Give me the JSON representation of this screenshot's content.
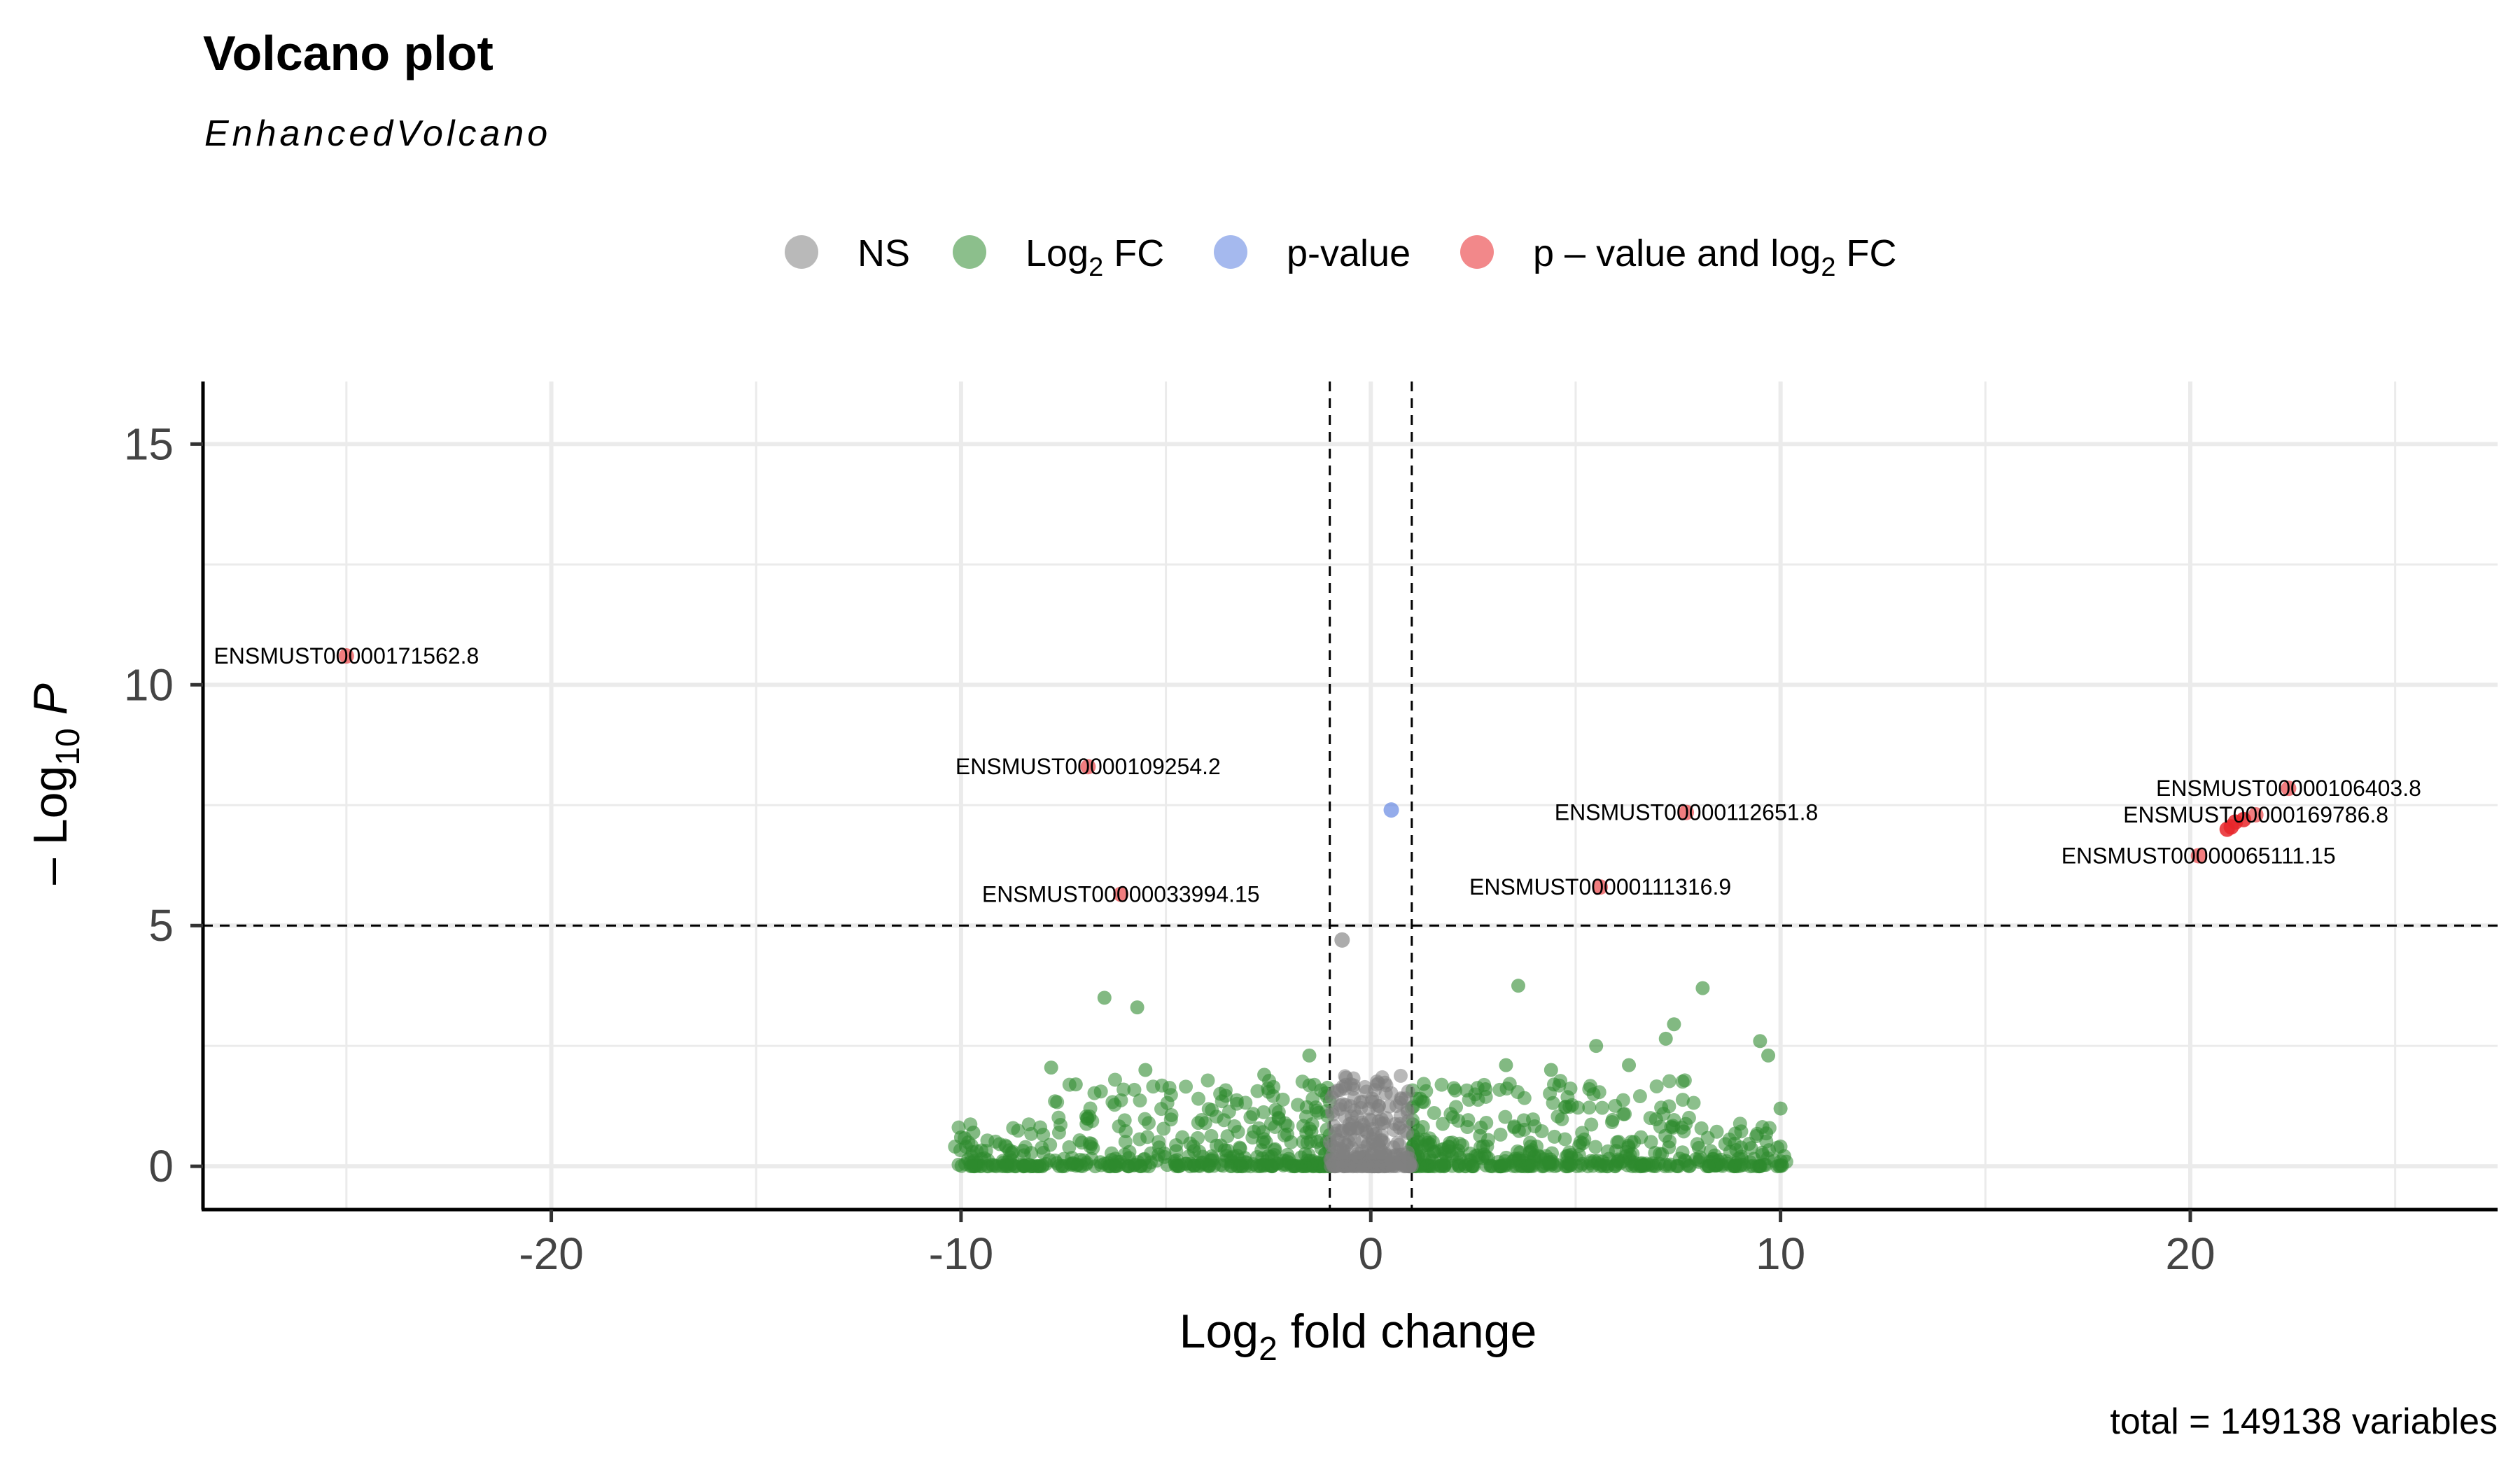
{
  "title": "Volcano plot",
  "subtitle": "EnhancedVolcano",
  "caption": "total = 149138 variables",
  "legend": [
    {
      "key": "ns",
      "label": "NS",
      "color": "#808080"
    },
    {
      "key": "fc",
      "label": "Log2 FC",
      "label_main": "Log",
      "label_sub": "2",
      "label_tail": " FC",
      "color": "#2e8b2e"
    },
    {
      "key": "p",
      "label": "p-value",
      "color": "#5b7fe0"
    },
    {
      "key": "both",
      "label": "p – value and log2 FC",
      "label_main": "p – value and log",
      "label_sub": "2",
      "label_tail": " FC",
      "color": "#e8262a"
    }
  ],
  "chart_data": {
    "type": "scatter",
    "title": "Volcano plot",
    "subtitle": "EnhancedVolcano",
    "xlabel": "Log2 fold change",
    "xlabel_main": "Log",
    "xlabel_sub": "2",
    "xlabel_tail": " fold change",
    "ylabel": "– Log10 P",
    "ylabel_main": "– Log",
    "ylabel_sub": "10",
    "ylabel_tail": " P",
    "xlim": [
      -28.5,
      27.5
    ],
    "ylim": [
      -0.9,
      16.3
    ],
    "xticks": [
      -20,
      -10,
      0,
      10,
      20
    ],
    "yticks": [
      0,
      5,
      10,
      15
    ],
    "grid": true,
    "legend_position": "top",
    "cutoffs": {
      "log2fc": [
        -1,
        1
      ],
      "neg_log10_p": 5
    },
    "significant_points": [
      {
        "label": "ENSMUST00000171562.8",
        "x": -25.0,
        "y": 10.6,
        "group": "both"
      },
      {
        "label": "ENSMUST00000109254.2",
        "x": -6.9,
        "y": 8.3,
        "group": "both"
      },
      {
        "label": "ENSMUST00000033994.15",
        "x": -6.1,
        "y": 5.65,
        "group": "both"
      },
      {
        "label": "ENSMUST00000112651.8",
        "x": 7.7,
        "y": 7.35,
        "group": "both"
      },
      {
        "label": "ENSMUST00000111316.9",
        "x": 5.6,
        "y": 5.8,
        "group": "both"
      },
      {
        "label": "ENSMUST00000106403.8",
        "x": 22.4,
        "y": 7.85,
        "group": "both"
      },
      {
        "label": "ENSMUST00000169786.8",
        "x": 21.6,
        "y": 7.3,
        "group": "both"
      },
      {
        "label": "ENSMUST00000065111.15",
        "x": 20.2,
        "y": 6.45,
        "group": "both"
      }
    ],
    "unlabeled_points": [
      {
        "x": 0.5,
        "y": 7.4,
        "group": "p"
      },
      {
        "x": -0.7,
        "y": 4.7,
        "group": "ns"
      },
      {
        "x": 21.3,
        "y": 7.2,
        "group": "both"
      },
      {
        "x": 21.1,
        "y": 7.15,
        "group": "both"
      },
      {
        "x": 20.9,
        "y": 7.0,
        "group": "both"
      },
      {
        "x": 21.0,
        "y": 7.05,
        "group": "both"
      }
    ],
    "fc_points_highlight": [
      {
        "x": -6.5,
        "y": 3.5
      },
      {
        "x": -5.7,
        "y": 3.3
      },
      {
        "x": 3.6,
        "y": 3.75
      },
      {
        "x": 8.1,
        "y": 3.7
      },
      {
        "x": 7.4,
        "y": 2.95
      },
      {
        "x": 9.5,
        "y": 2.6
      },
      {
        "x": 9.7,
        "y": 2.3
      },
      {
        "x": 10.0,
        "y": 1.2
      },
      {
        "x": -10.0,
        "y": 0.6
      },
      {
        "x": -9.7,
        "y": 0.7
      },
      {
        "x": -7.8,
        "y": 2.05
      },
      {
        "x": -7.2,
        "y": 1.7
      },
      {
        "x": -5.5,
        "y": 2.0
      },
      {
        "x": -1.5,
        "y": 2.3
      },
      {
        "x": -2.6,
        "y": 1.9
      },
      {
        "x": 3.3,
        "y": 2.1
      },
      {
        "x": 5.5,
        "y": 2.5
      },
      {
        "x": 4.4,
        "y": 2.0
      },
      {
        "x": 7.2,
        "y": 2.65
      },
      {
        "x": 6.3,
        "y": 2.1
      },
      {
        "x": 2.8,
        "y": 1.6
      }
    ],
    "background_clusters": [
      {
        "group": "fc",
        "x_range": [
          -10.2,
          10.2
        ],
        "y_max": 1.8,
        "count": 900
      },
      {
        "group": "ns",
        "x_range": [
          -1.0,
          1.0
        ],
        "y_max": 1.9,
        "count": 260
      }
    ]
  }
}
